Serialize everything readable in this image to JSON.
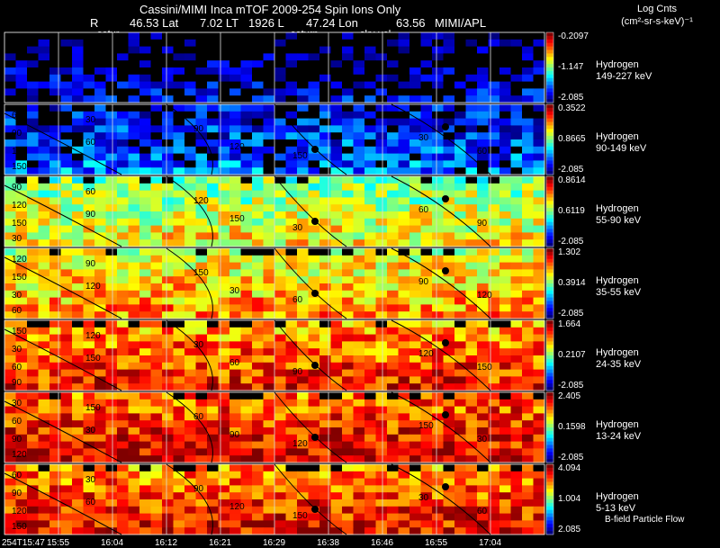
{
  "header": {
    "title": "Cassini/MIMI Inca mTOF  2009-254   Spin    Ions Only",
    "line2": [
      "R",
      "46.53 Lat",
      "7.02 LT",
      "1926 L",
      "47.24 Lon",
      "63.56",
      "MIMI/APL"
    ],
    "overlay_labels": [
      "satur",
      "saturn",
      "sky-vel"
    ]
  },
  "colorbar": {
    "title": "Log Cnts",
    "units": "(cm²-sr-s-keV)⁻¹"
  },
  "footer_note": "B-field Particle Flow",
  "chart_data": {
    "type": "heatmap",
    "title": "Cassini/MIMI Inca mTOF  2009-254   Spin    Ions Only",
    "x_ticks": [
      "254T15:47",
      "15:55",
      "16:04",
      "16:12",
      "16:21",
      "16:29",
      "16:38",
      "16:46",
      "16:55",
      "17:04"
    ],
    "panels": [
      {
        "species": "Hydrogen",
        "energy": "149-227 keV",
        "cmax": "-0.2097",
        "cmid": "-1.147",
        "cmin": "-2.085",
        "level": 0.05
      },
      {
        "species": "Hydrogen",
        "energy": "90-149 keV",
        "cmax": "0.3522",
        "cmid": "0.8665",
        "cmin": "-2.085",
        "level": 0.2
      },
      {
        "species": "Hydrogen",
        "energy": "55-90 keV",
        "cmax": "0.8614",
        "cmid": "0.6119",
        "cmin": "-2.085",
        "level": 0.6
      },
      {
        "species": "Hydrogen",
        "energy": "35-55 keV",
        "cmax": "1.302",
        "cmid": "0.3914",
        "cmin": "-2.085",
        "level": 0.7
      },
      {
        "species": "Hydrogen",
        "energy": "24-35 keV",
        "cmax": "1.664",
        "cmid": "0.2107",
        "cmin": "-2.085",
        "level": 0.82
      },
      {
        "species": "Hydrogen",
        "energy": "13-24 keV",
        "cmax": "2.405",
        "cmid": "0.1598",
        "cmin": "-2.085",
        "level": 0.88
      },
      {
        "species": "Hydrogen",
        "energy": "5-13 keV",
        "cmax": "4.094",
        "cmid": "1.004",
        "cmin": "2.085",
        "level": 0.85
      }
    ],
    "contour_labels": [
      "30",
      "60",
      "90",
      "120",
      "150"
    ]
  }
}
